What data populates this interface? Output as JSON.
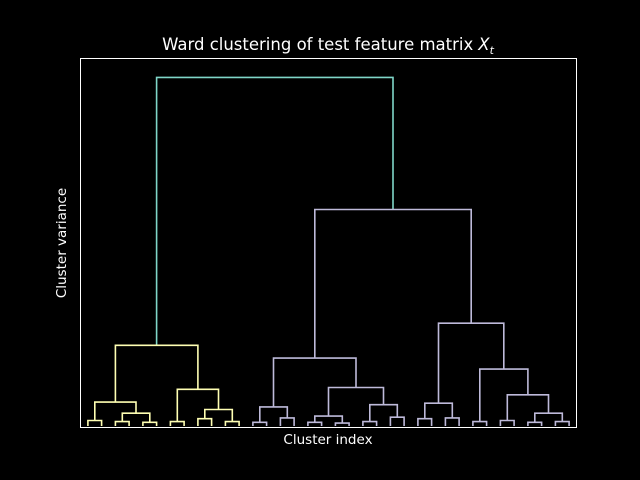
{
  "chart_data": {
    "type": "dendrogram",
    "title": "Ward clustering of test feature matrix",
    "title_math": "X",
    "title_math_sub": "t",
    "xlabel": "Cluster index",
    "ylabel": "Cluster variance",
    "ylim": [
      0,
      1.0
    ],
    "grid": false,
    "background": "#000000",
    "axis_color": "#ffffff",
    "colors": {
      "root": "#7fd6c8",
      "cluster_a": "#ffffb3",
      "cluster_b": "#bebada"
    },
    "tree": {
      "h": 0.95,
      "c": "root",
      "ch": [
        {
          "h": 0.22,
          "c": "cluster_a",
          "ch": [
            {
              "h": 0.065,
              "c": "cluster_a",
              "ch": [
                {
                  "h": 0.015,
                  "c": "cluster_a",
                  "ch": [
                    {
                      "n": 1
                    },
                    {
                      "n": 1
                    }
                  ]
                },
                {
                  "h": 0.035,
                  "c": "cluster_a",
                  "ch": [
                    {
                      "h": 0.012,
                      "c": "cluster_a",
                      "ch": [
                        {
                          "n": 1
                        },
                        {
                          "n": 1
                        }
                      ]
                    },
                    {
                      "h": 0.01,
                      "c": "cluster_a",
                      "ch": [
                        {
                          "n": 1
                        },
                        {
                          "n": 1
                        }
                      ]
                    }
                  ]
                }
              ]
            },
            {
              "h": 0.1,
              "c": "cluster_a",
              "ch": [
                {
                  "h": 0.012,
                  "c": "cluster_a",
                  "ch": [
                    {
                      "n": 1
                    },
                    {
                      "n": 1
                    }
                  ]
                },
                {
                  "h": 0.045,
                  "c": "cluster_a",
                  "ch": [
                    {
                      "h": 0.02,
                      "c": "cluster_a",
                      "ch": [
                        {
                          "n": 1
                        },
                        {
                          "n": 1
                        }
                      ]
                    },
                    {
                      "h": 0.012,
                      "c": "cluster_a",
                      "ch": [
                        {
                          "n": 1
                        },
                        {
                          "n": 1
                        }
                      ]
                    }
                  ]
                }
              ]
            }
          ]
        },
        {
          "h": 0.59,
          "c": "cluster_b",
          "ch": [
            {
              "h": 0.185,
              "c": "cluster_b",
              "ch": [
                {
                  "h": 0.052,
                  "c": "cluster_b",
                  "ch": [
                    {
                      "h": 0.01,
                      "c": "cluster_b",
                      "ch": [
                        {
                          "n": 1
                        },
                        {
                          "n": 1
                        }
                      ]
                    },
                    {
                      "h": 0.022,
                      "c": "cluster_b",
                      "ch": [
                        {
                          "n": 1
                        },
                        {
                          "n": 1
                        }
                      ]
                    }
                  ]
                },
                {
                  "h": 0.105,
                  "c": "cluster_b",
                  "ch": [
                    {
                      "h": 0.027,
                      "c": "cluster_b",
                      "ch": [
                        {
                          "h": 0.01,
                          "c": "cluster_b",
                          "ch": [
                            {
                              "n": 1
                            },
                            {
                              "n": 1
                            }
                          ]
                        },
                        {
                          "h": 0.008,
                          "c": "cluster_b",
                          "ch": [
                            {
                              "n": 1
                            },
                            {
                              "n": 1
                            }
                          ]
                        }
                      ]
                    },
                    {
                      "h": 0.058,
                      "c": "cluster_b",
                      "ch": [
                        {
                          "h": 0.012,
                          "c": "cluster_b",
                          "ch": [
                            {
                              "n": 1
                            },
                            {
                              "n": 1
                            }
                          ]
                        },
                        {
                          "h": 0.024,
                          "c": "cluster_b",
                          "ch": [
                            {
                              "n": 1
                            },
                            {
                              "n": 1
                            }
                          ]
                        }
                      ]
                    }
                  ]
                }
              ]
            },
            {
              "h": 0.28,
              "c": "cluster_b",
              "ch": [
                {
                  "h": 0.062,
                  "c": "cluster_b",
                  "ch": [
                    {
                      "h": 0.02,
                      "c": "cluster_b",
                      "ch": [
                        {
                          "n": 1
                        },
                        {
                          "n": 1
                        }
                      ]
                    },
                    {
                      "h": 0.022,
                      "c": "cluster_b",
                      "ch": [
                        {
                          "n": 1
                        },
                        {
                          "n": 1
                        }
                      ]
                    }
                  ]
                },
                {
                  "h": 0.155,
                  "c": "cluster_b",
                  "ch": [
                    {
                      "h": 0.012,
                      "c": "cluster_b",
                      "ch": [
                        {
                          "n": 1
                        },
                        {
                          "n": 1
                        }
                      ]
                    },
                    {
                      "h": 0.085,
                      "c": "cluster_b",
                      "ch": [
                        {
                          "h": 0.015,
                          "c": "cluster_b",
                          "ch": [
                            {
                              "n": 1
                            },
                            {
                              "n": 1
                            }
                          ]
                        },
                        {
                          "h": 0.035,
                          "c": "cluster_b",
                          "ch": [
                            {
                              "h": 0.01,
                              "c": "cluster_b",
                              "ch": [
                                {
                                  "n": 1
                                },
                                {
                                  "n": 1
                                }
                              ]
                            },
                            {
                              "h": 0.012,
                              "c": "cluster_b",
                              "ch": [
                                {
                                  "n": 1
                                },
                                {
                                  "n": 1
                                }
                              ]
                            }
                          ]
                        }
                      ]
                    }
                  ]
                }
              ]
            }
          ]
        }
      ]
    }
  }
}
